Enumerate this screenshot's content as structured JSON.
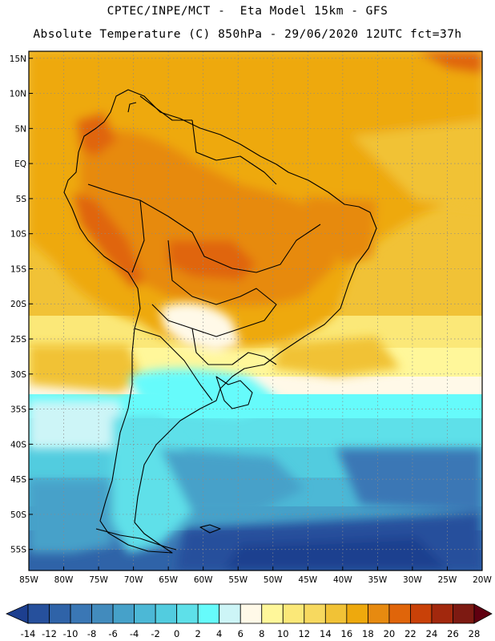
{
  "header": {
    "line1": "CPTEC/INPE/MCT -  Eta Model 15km - GFS",
    "line2": "Absolute Temperature (C) 850hPa - 29/06/2020 12UTC fct=37h"
  },
  "map": {
    "region": "South America",
    "lon_range": [
      -85,
      -20
    ],
    "lat_range": [
      -58,
      16
    ],
    "lat_ticks": [
      {
        "lat": 15,
        "label": "15N"
      },
      {
        "lat": 10,
        "label": "10N"
      },
      {
        "lat": 5,
        "label": "5N"
      },
      {
        "lat": 0,
        "label": "EQ"
      },
      {
        "lat": -5,
        "label": "5S"
      },
      {
        "lat": -10,
        "label": "10S"
      },
      {
        "lat": -15,
        "label": "15S"
      },
      {
        "lat": -20,
        "label": "20S"
      },
      {
        "lat": -25,
        "label": "25S"
      },
      {
        "lat": -30,
        "label": "30S"
      },
      {
        "lat": -35,
        "label": "35S"
      },
      {
        "lat": -40,
        "label": "40S"
      },
      {
        "lat": -45,
        "label": "45S"
      },
      {
        "lat": -50,
        "label": "50S"
      },
      {
        "lat": -55,
        "label": "55S"
      }
    ],
    "lon_ticks": [
      {
        "lon": -85,
        "label": "85W"
      },
      {
        "lon": -80,
        "label": "80W"
      },
      {
        "lon": -75,
        "label": "75W"
      },
      {
        "lon": -70,
        "label": "70W"
      },
      {
        "lon": -65,
        "label": "65W"
      },
      {
        "lon": -60,
        "label": "60W"
      },
      {
        "lon": -55,
        "label": "55W"
      },
      {
        "lon": -50,
        "label": "50W"
      },
      {
        "lon": -45,
        "label": "45W"
      },
      {
        "lon": -40,
        "label": "40W"
      },
      {
        "lon": -35,
        "label": "35W"
      },
      {
        "lon": -30,
        "label": "30W"
      },
      {
        "lon": -25,
        "label": "25W"
      },
      {
        "lon": -20,
        "label": "20W"
      }
    ]
  },
  "colorbar": {
    "levels": [
      "-14",
      "-12",
      "-10",
      "-8",
      "-6",
      "-4",
      "-2",
      "0",
      "2",
      "4",
      "6",
      "8",
      "10",
      "12",
      "14",
      "16",
      "18",
      "20",
      "22",
      "24",
      "26",
      "28"
    ],
    "colors": [
      "#1d3f8f",
      "#26509c",
      "#2f63a8",
      "#3a77b5",
      "#428bbd",
      "#46a1c9",
      "#4cb8d6",
      "#52ccdf",
      "#5ee0e9",
      "#66fbfb",
      "#cdf5f7",
      "#fff9e8",
      "#fff79a",
      "#fbe878",
      "#f7d95f",
      "#f1c236",
      "#eea90d",
      "#e78a10",
      "#e0650a",
      "#c94108",
      "#a2280d",
      "#7d1a12",
      "#600010"
    ],
    "unit": "C"
  }
}
